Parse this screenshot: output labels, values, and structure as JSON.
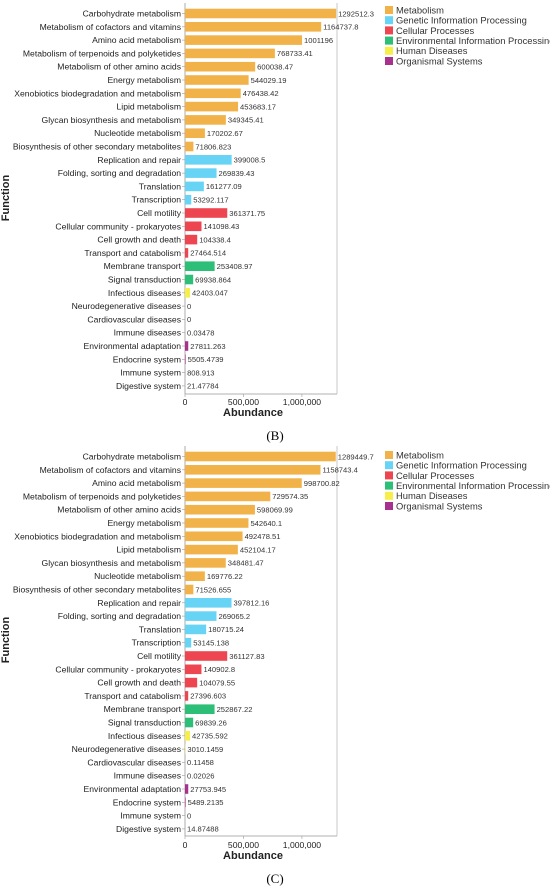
{
  "categories": [
    "Carbohydrate metabolism",
    "Metabolism of cofactors and vitamins",
    "Amino acid metabolism",
    "Metabolism of terpenoids and polyketides",
    "Metabolism of other amino acids",
    "Energy metabolism",
    "Xenobiotics biodegradation and metabolism",
    "Lipid metabolism",
    "Glycan biosynthesis and metabolism",
    "Nucleotide metabolism",
    "Biosynthesis of other secondary metabolites",
    "Replication and repair",
    "Folding, sorting and degradation",
    "Translation",
    "Transcription",
    "Cell motility",
    "Cellular community - prokaryotes",
    "Cell growth and death",
    "Transport and catabolism",
    "Membrane transport",
    "Signal transduction",
    "Infectious diseases",
    "Neurodegenerative diseases",
    "Cardiovascular diseases",
    "Immune diseases",
    "Environmental adaptation",
    "Endocrine system",
    "Immune system",
    "Digestive system"
  ],
  "category_group": [
    0,
    0,
    0,
    0,
    0,
    0,
    0,
    0,
    0,
    0,
    0,
    1,
    1,
    1,
    1,
    2,
    2,
    2,
    2,
    3,
    3,
    4,
    4,
    4,
    4,
    5,
    5,
    5,
    5
  ],
  "legend": [
    {
      "label": "Metabolism",
      "color": "#F2B24A"
    },
    {
      "label": "Genetic Information Processing",
      "color": "#67D3F5"
    },
    {
      "label": "Cellular Processes",
      "color": "#EE4650"
    },
    {
      "label": "Environmental Information Processing",
      "color": "#2DBE78"
    },
    {
      "label": "Human Diseases",
      "color": "#F7EE4A"
    },
    {
      "label": "Organismal Systems",
      "color": "#A8318E"
    }
  ],
  "chart_data": [
    {
      "type": "bar",
      "orientation": "horizontal",
      "panel_label": "(B)",
      "xlabel": "Abundance",
      "ylabel": "Function",
      "xlim": [
        0,
        1300000
      ],
      "xticks": [
        "0",
        "500,000",
        "1,000,000"
      ],
      "values": [
        1292512.3,
        1164737.8,
        1001196,
        768733.41,
        600038.47,
        544029.19,
        476438.42,
        453683.17,
        349345.41,
        170202.67,
        71806.823,
        399008.5,
        269839.43,
        161277.09,
        53292.117,
        361371.75,
        141098.43,
        104338.4,
        27464.514,
        253408.97,
        69938.864,
        42403.047,
        0,
        0,
        0.03478,
        27811.263,
        5505.4739,
        808.913,
        21.47784
      ],
      "labels": [
        "1292512.3",
        "1164737.8",
        "1001196",
        "768733.41",
        "600038.47",
        "544029.19",
        "476438.42",
        "453683.17",
        "349345.41",
        "170202.67",
        "71806.823",
        "399008.5",
        "269839.43",
        "161277.09",
        "53292.117",
        "361371.75",
        "141098.43",
        "104338.4",
        "27464.514",
        "253408.97",
        "69938.864",
        "42403.047",
        "0",
        "0",
        "0.03478",
        "27811.263",
        "5505.4739",
        "808.913",
        "21.47784"
      ]
    },
    {
      "type": "bar",
      "orientation": "horizontal",
      "panel_label": "(C)",
      "xlabel": "Abundance",
      "ylabel": "Function",
      "xlim": [
        0,
        1300000
      ],
      "xticks": [
        "0",
        "500,000",
        "1,000,000"
      ],
      "values": [
        1289449.7,
        1158743.4,
        998700.82,
        729574.35,
        598069.99,
        542640.1,
        492478.51,
        452104.17,
        348481.47,
        169776.22,
        71526.655,
        397812.16,
        269065.2,
        180715.24,
        53145.138,
        361127.83,
        140902.8,
        104079.55,
        27396.603,
        252867.22,
        69839.26,
        42735.592,
        3010.1459,
        0.11458,
        0.02026,
        27753.945,
        5489.2135,
        0,
        14.87488
      ],
      "labels": [
        "1289449.7",
        "1158743.4",
        "998700.82",
        "729574.35",
        "598069.99",
        "542640.1",
        "492478.51",
        "452104.17",
        "348481.47",
        "169776.22",
        "71526.655",
        "397812.16",
        "269065.2",
        "180715.24",
        "53145.138",
        "361127.83",
        "140902.8",
        "104079.55",
        "27396.603",
        "252867.22",
        "69839.26",
        "42735.592",
        "3010.1459",
        "0.11458",
        "0.02026",
        "27753.945",
        "5489.2135",
        "0",
        "14.87488"
      ]
    }
  ]
}
